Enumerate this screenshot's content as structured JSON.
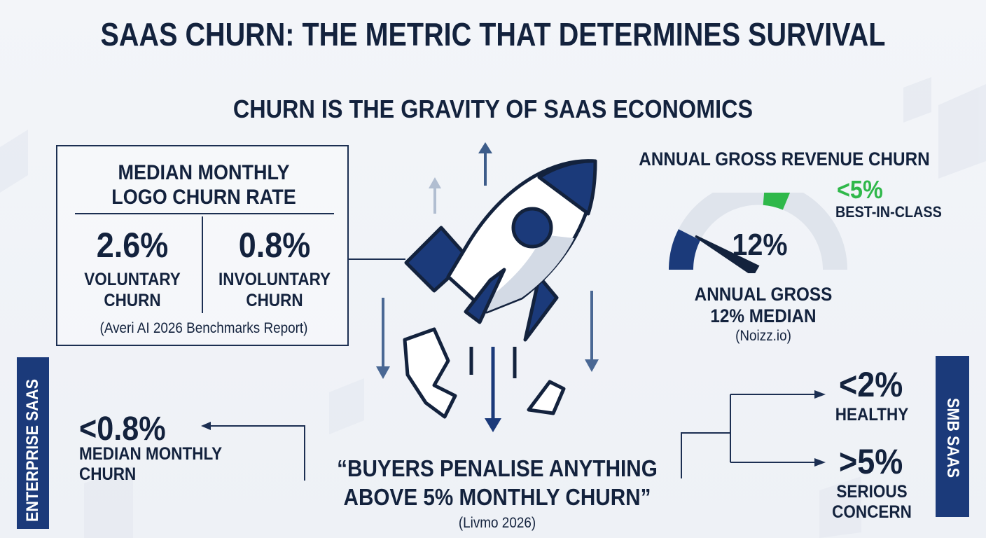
{
  "title": "SAAS CHURN: THE METRIC THAT DETERMINES SURVIVAL",
  "subtitle": "CHURN IS THE GRAVITY OF SAAS ECONOMICS",
  "monthly_box": {
    "title_line1": "MEDIAN MONTHLY",
    "title_line2": "LOGO CHURN RATE",
    "voluntary": {
      "value": "2.6%",
      "label_line1": "VOLUNTARY",
      "label_line2": "CHURN"
    },
    "involuntary": {
      "value": "0.8%",
      "label_line1": "INVOLUNTARY",
      "label_line2": "CHURN"
    },
    "source": "(Averi AI 2026 Benchmarks Report)"
  },
  "gauge": {
    "title": "ANNUAL GROSS REVENUE CHURN",
    "value_label": "12%",
    "median_value": 12,
    "best_value": "<5%",
    "best_label": "BEST-IN-CLASS",
    "caption_line1": "ANNUAL GROSS",
    "caption_line2": "12% MEDIAN",
    "source": "(Noizz.io)",
    "colors": {
      "track": "#dfe4ec",
      "fill": "#1b3a7a",
      "best": "#2fb84a"
    }
  },
  "enterprise": {
    "banner": "ENTERPRISE SAAS",
    "value": "<0.8%",
    "label_line1": "MEDIAN MONTHLY",
    "label_line2": "CHURN"
  },
  "smb": {
    "banner": "SMB SAAS",
    "healthy_value": "<2%",
    "healthy_label": "HEALTHY",
    "concern_value": ">5%",
    "concern_label_line1": "SERIOUS",
    "concern_label_line2": "CONCERN"
  },
  "quote": {
    "line1": "“BUYERS PENALISE ANYTHING",
    "line2": "ABOVE 5% MONTHLY CHURN”",
    "source": "(Livmo 2026)"
  },
  "colors": {
    "navy": "#13223d",
    "blue": "#1b3a7a",
    "green": "#2fb84a"
  },
  "icons": [
    "rocket-icon",
    "arrow-up-icon",
    "arrow-down-icon",
    "debris-icon",
    "gauge-needle-icon"
  ]
}
